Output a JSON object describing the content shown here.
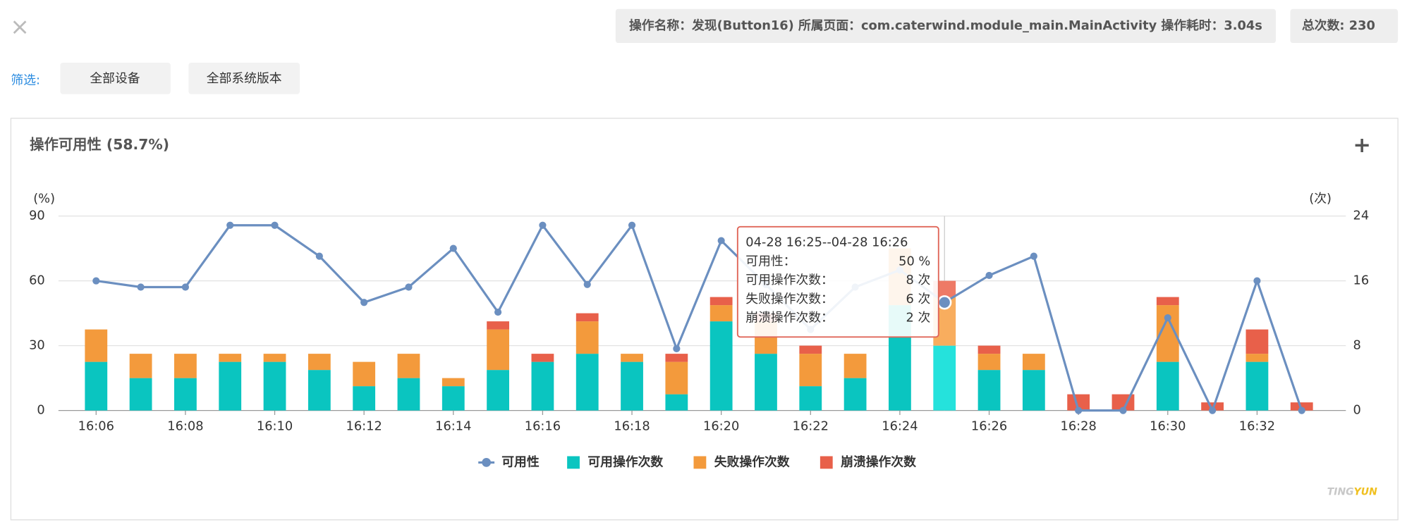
{
  "header": {
    "info": "操作名称：发现(Button16) 所属页面：com.caterwind.module_main.MainActivity 操作耗时：3.04s",
    "total": "总次数: 230"
  },
  "filters": {
    "label": "筛选:",
    "buttons": [
      "全部设备",
      "全部系统版本"
    ]
  },
  "logo": {
    "a": "TING",
    "b": "YUN"
  },
  "tooltip": {
    "title": "04-28 16:25--04-28 16:26",
    "rows": [
      {
        "label": "可用性：",
        "value": "50 %"
      },
      {
        "label": "可用操作次数：",
        "value": "8 次"
      },
      {
        "label": "失败操作次数：",
        "value": "6 次"
      },
      {
        "label": "崩溃操作次数：",
        "value": "2 次"
      }
    ]
  },
  "chart_data": {
    "type": "combo",
    "title": "操作可用性 (58.7%)",
    "y_label": "(%)",
    "y2_label": "(次)",
    "categories": [
      "16:06",
      null,
      "16:08",
      null,
      "16:10",
      null,
      "16:12",
      null,
      "16:14",
      null,
      "16:16",
      null,
      "16:18",
      null,
      "16:20",
      null,
      "16:22",
      null,
      "16:24",
      null,
      "16:26",
      null,
      "16:28",
      null,
      "16:30",
      null,
      "16:32",
      null
    ],
    "series": [
      {
        "name": "可用性",
        "type": "line",
        "color": "#6b8fc0",
        "values": [
          60,
          57.1,
          57.1,
          85.7,
          85.7,
          71.4,
          50,
          57.1,
          75,
          45.5,
          85.7,
          58.3,
          85.7,
          28.6,
          78.6,
          58.3,
          37.5,
          57.1,
          65,
          50,
          62.5,
          71.4,
          0,
          0,
          42.9,
          0,
          60,
          0
        ]
      },
      {
        "name": "可用操作次数",
        "type": "bar",
        "axis": "y2",
        "color": "#0ac5c0",
        "values": [
          6,
          4,
          4,
          6,
          6,
          5,
          3,
          4,
          3,
          5,
          6,
          7,
          6,
          2,
          11,
          7,
          3,
          4,
          13,
          8,
          5,
          5,
          0,
          0,
          6,
          0,
          6,
          0
        ]
      },
      {
        "name": "失败操作次数",
        "type": "bar",
        "axis": "y2",
        "color": "#f39a3c",
        "values": [
          4,
          3,
          3,
          1,
          1,
          2,
          3,
          3,
          1,
          5,
          0,
          4,
          1,
          4,
          2,
          4,
          4,
          3,
          7,
          6,
          2,
          2,
          0,
          0,
          7,
          0,
          1,
          0
        ]
      },
      {
        "name": "崩溃操作次数",
        "type": "bar",
        "axis": "y2",
        "color": "#e8604a",
        "values": [
          0,
          0,
          0,
          0,
          0,
          0,
          0,
          0,
          0,
          1,
          1,
          1,
          0,
          1,
          1,
          1,
          1,
          0,
          0,
          2,
          1,
          0,
          2,
          2,
          1,
          1,
          3,
          1
        ]
      }
    ],
    "ylim": [
      0,
      90
    ],
    "yticks": [
      0,
      30,
      60,
      90
    ],
    "y2lim": [
      0,
      24
    ],
    "y2ticks": [
      0,
      8,
      16,
      24
    ],
    "grid": true
  }
}
